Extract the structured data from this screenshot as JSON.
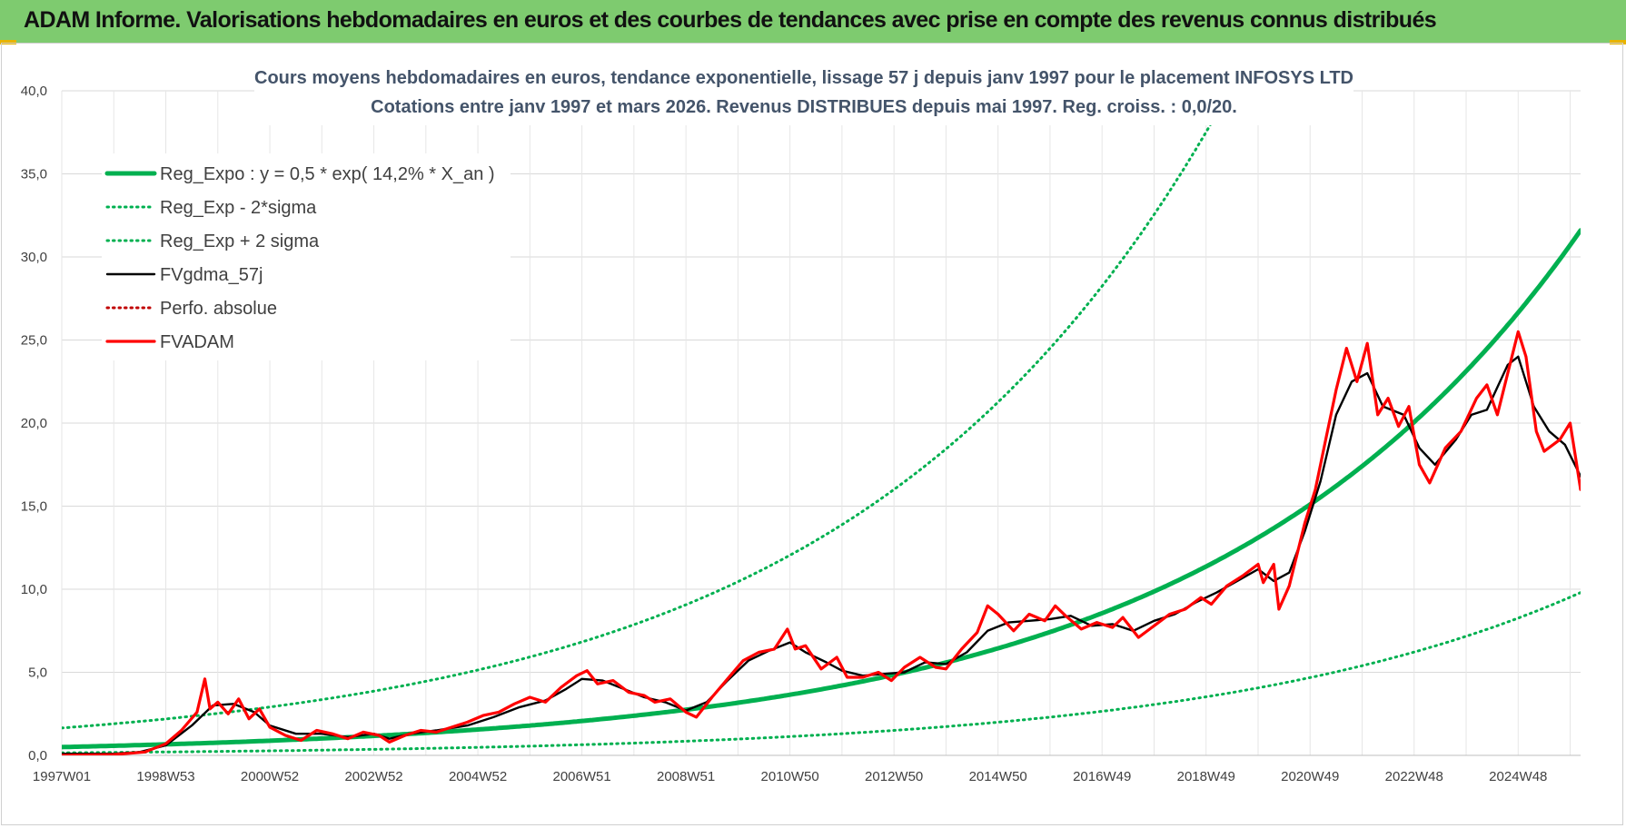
{
  "banner": {
    "title": "ADAM Informe. Valorisations hebdomadaires en euros et des courbes de tendances avec prise en compte des revenus connus distribués",
    "background": "#7ecb6f"
  },
  "chart_data": {
    "type": "line",
    "title_line1": "Cours moyens hebdomadaires en euros, tendance exponentielle, lissage 57 j depuis janv 1997  pour le placement INFOSYS LTD",
    "title_line2": "Cotations entre janv 1997 et mars 2026. Revenus DISTRIBUES depuis mai 1997. Reg. croiss. : 0,0/20.",
    "xlabel": "",
    "ylabel": "",
    "xlim": [
      1997.0,
      2026.2
    ],
    "ylim": [
      0,
      40
    ],
    "grid": true,
    "y_ticks": [
      {
        "v": 0,
        "label": "0,0"
      },
      {
        "v": 5,
        "label": "5,0"
      },
      {
        "v": 10,
        "label": "10,0"
      },
      {
        "v": 15,
        "label": "15,0"
      },
      {
        "v": 20,
        "label": "20,0"
      },
      {
        "v": 25,
        "label": "25,0"
      },
      {
        "v": 30,
        "label": "30,0"
      },
      {
        "v": 35,
        "label": "35,0"
      },
      {
        "v": 40,
        "label": "40,0"
      }
    ],
    "x_ticks": [
      {
        "t": 1997.0,
        "label": "1997W01"
      },
      {
        "t": 1999.0,
        "label": "1998W53"
      },
      {
        "t": 2001.0,
        "label": "2000W52"
      },
      {
        "t": 2003.0,
        "label": "2002W52"
      },
      {
        "t": 2005.0,
        "label": "2004W52"
      },
      {
        "t": 2007.0,
        "label": "2006W51"
      },
      {
        "t": 2009.0,
        "label": "2008W51"
      },
      {
        "t": 2011.0,
        "label": "2010W50"
      },
      {
        "t": 2013.0,
        "label": "2012W50"
      },
      {
        "t": 2015.0,
        "label": "2014W50"
      },
      {
        "t": 2017.0,
        "label": "2016W49"
      },
      {
        "t": 2019.0,
        "label": "2018W49"
      },
      {
        "t": 2021.0,
        "label": "2020W49"
      },
      {
        "t": 2023.0,
        "label": "2022W48"
      },
      {
        "t": 2025.0,
        "label": "2024W48"
      }
    ],
    "legend_position": "top-left",
    "series": [
      {
        "name": "Reg_Expo : y = 0,5 * exp( 14,2% *  X_an )",
        "color": "#00b050",
        "style": "solid-thick",
        "model": {
          "type": "exp",
          "a": 0.5,
          "rate": 0.142,
          "start": 1997.0
        }
      },
      {
        "name": "Reg_Exp - 2*sigma",
        "color": "#00b050",
        "style": "dotted",
        "model": {
          "type": "exp",
          "a": 0.5,
          "rate": 0.142,
          "start": 1997.0,
          "factor": 0.31
        }
      },
      {
        "name": "Reg_Exp + 2 sigma",
        "color": "#00b050",
        "style": "dotted",
        "model": {
          "type": "exp",
          "a": 0.5,
          "rate": 0.142,
          "start": 1997.0,
          "factor": 3.3
        }
      },
      {
        "name": "FVgdma_57j",
        "color": "#000000",
        "style": "solid",
        "points": [
          [
            1997.0,
            0.1
          ],
          [
            1998.0,
            0.1
          ],
          [
            1998.5,
            0.2
          ],
          [
            1999.0,
            0.6
          ],
          [
            1999.5,
            1.8
          ],
          [
            1999.9,
            3.0
          ],
          [
            2000.3,
            3.1
          ],
          [
            2000.7,
            2.6
          ],
          [
            2001.0,
            1.8
          ],
          [
            2001.5,
            1.3
          ],
          [
            2002.0,
            1.3
          ],
          [
            2002.5,
            1.1
          ],
          [
            2003.0,
            1.3
          ],
          [
            2003.3,
            1.0
          ],
          [
            2003.7,
            1.3
          ],
          [
            2004.2,
            1.5
          ],
          [
            2004.8,
            1.8
          ],
          [
            2005.3,
            2.3
          ],
          [
            2005.8,
            2.9
          ],
          [
            2006.3,
            3.3
          ],
          [
            2006.7,
            4.0
          ],
          [
            2007.0,
            4.6
          ],
          [
            2007.4,
            4.5
          ],
          [
            2007.8,
            4.0
          ],
          [
            2008.2,
            3.5
          ],
          [
            2008.6,
            3.2
          ],
          [
            2009.0,
            2.7
          ],
          [
            2009.4,
            3.2
          ],
          [
            2009.8,
            4.5
          ],
          [
            2010.2,
            5.7
          ],
          [
            2010.6,
            6.3
          ],
          [
            2011.0,
            6.8
          ],
          [
            2011.3,
            6.2
          ],
          [
            2011.7,
            5.6
          ],
          [
            2012.0,
            5.1
          ],
          [
            2012.4,
            4.8
          ],
          [
            2012.8,
            4.9
          ],
          [
            2013.2,
            5.0
          ],
          [
            2013.6,
            5.6
          ],
          [
            2014.0,
            5.5
          ],
          [
            2014.4,
            6.2
          ],
          [
            2014.8,
            7.5
          ],
          [
            2015.2,
            8.0
          ],
          [
            2015.6,
            8.1
          ],
          [
            2016.0,
            8.2
          ],
          [
            2016.4,
            8.4
          ],
          [
            2016.8,
            7.8
          ],
          [
            2017.2,
            7.9
          ],
          [
            2017.6,
            7.5
          ],
          [
            2018.0,
            8.1
          ],
          [
            2018.4,
            8.5
          ],
          [
            2018.8,
            9.2
          ],
          [
            2019.2,
            9.8
          ],
          [
            2019.6,
            10.5
          ],
          [
            2020.0,
            11.2
          ],
          [
            2020.3,
            10.5
          ],
          [
            2020.6,
            11.0
          ],
          [
            2020.9,
            13.5
          ],
          [
            2021.2,
            16.5
          ],
          [
            2021.5,
            20.5
          ],
          [
            2021.8,
            22.5
          ],
          [
            2022.1,
            23.0
          ],
          [
            2022.4,
            21.0
          ],
          [
            2022.8,
            20.5
          ],
          [
            2023.1,
            18.5
          ],
          [
            2023.4,
            17.5
          ],
          [
            2023.8,
            19.0
          ],
          [
            2024.1,
            20.5
          ],
          [
            2024.4,
            20.8
          ],
          [
            2024.8,
            23.5
          ],
          [
            2025.0,
            24.0
          ],
          [
            2025.3,
            21.0
          ],
          [
            2025.6,
            19.5
          ],
          [
            2025.9,
            18.7
          ],
          [
            2026.2,
            16.8
          ]
        ]
      },
      {
        "name": "Perfo. absolue",
        "color": "#c00000",
        "style": "dotted",
        "points": []
      },
      {
        "name": "FVADAM",
        "color": "#ff0000",
        "style": "solid-thick",
        "points": [
          [
            1997.0,
            0.0
          ],
          [
            1998.0,
            0.05
          ],
          [
            1998.6,
            0.2
          ],
          [
            1999.0,
            0.7
          ],
          [
            1999.3,
            1.5
          ],
          [
            1999.6,
            2.6
          ],
          [
            1999.75,
            4.6
          ],
          [
            1999.85,
            2.8
          ],
          [
            2000.0,
            3.2
          ],
          [
            2000.2,
            2.5
          ],
          [
            2000.4,
            3.4
          ],
          [
            2000.6,
            2.2
          ],
          [
            2000.8,
            2.8
          ],
          [
            2001.0,
            1.7
          ],
          [
            2001.3,
            1.2
          ],
          [
            2001.6,
            0.9
          ],
          [
            2001.9,
            1.5
          ],
          [
            2002.2,
            1.3
          ],
          [
            2002.5,
            1.0
          ],
          [
            2002.8,
            1.4
          ],
          [
            2003.1,
            1.2
          ],
          [
            2003.3,
            0.8
          ],
          [
            2003.6,
            1.2
          ],
          [
            2003.9,
            1.5
          ],
          [
            2004.2,
            1.4
          ],
          [
            2004.5,
            1.7
          ],
          [
            2004.8,
            2.0
          ],
          [
            2005.1,
            2.4
          ],
          [
            2005.4,
            2.6
          ],
          [
            2005.7,
            3.1
          ],
          [
            2006.0,
            3.5
          ],
          [
            2006.3,
            3.2
          ],
          [
            2006.6,
            4.1
          ],
          [
            2006.9,
            4.8
          ],
          [
            2007.1,
            5.1
          ],
          [
            2007.3,
            4.3
          ],
          [
            2007.6,
            4.5
          ],
          [
            2007.9,
            3.8
          ],
          [
            2008.2,
            3.6
          ],
          [
            2008.4,
            3.2
          ],
          [
            2008.7,
            3.4
          ],
          [
            2009.0,
            2.6
          ],
          [
            2009.2,
            2.3
          ],
          [
            2009.5,
            3.5
          ],
          [
            2009.8,
            4.6
          ],
          [
            2010.1,
            5.7
          ],
          [
            2010.4,
            6.2
          ],
          [
            2010.7,
            6.4
          ],
          [
            2010.95,
            7.6
          ],
          [
            2011.1,
            6.4
          ],
          [
            2011.3,
            6.6
          ],
          [
            2011.6,
            5.2
          ],
          [
            2011.9,
            5.9
          ],
          [
            2012.1,
            4.7
          ],
          [
            2012.4,
            4.7
          ],
          [
            2012.7,
            5.0
          ],
          [
            2012.95,
            4.5
          ],
          [
            2013.2,
            5.3
          ],
          [
            2013.5,
            5.9
          ],
          [
            2013.8,
            5.3
          ],
          [
            2014.0,
            5.2
          ],
          [
            2014.3,
            6.4
          ],
          [
            2014.6,
            7.4
          ],
          [
            2014.8,
            9.0
          ],
          [
            2015.0,
            8.5
          ],
          [
            2015.3,
            7.5
          ],
          [
            2015.6,
            8.5
          ],
          [
            2015.9,
            8.1
          ],
          [
            2016.1,
            9.0
          ],
          [
            2016.3,
            8.4
          ],
          [
            2016.6,
            7.6
          ],
          [
            2016.9,
            8.0
          ],
          [
            2017.2,
            7.7
          ],
          [
            2017.4,
            8.3
          ],
          [
            2017.7,
            7.1
          ],
          [
            2018.0,
            7.8
          ],
          [
            2018.3,
            8.5
          ],
          [
            2018.6,
            8.8
          ],
          [
            2018.9,
            9.5
          ],
          [
            2019.1,
            9.1
          ],
          [
            2019.4,
            10.2
          ],
          [
            2019.7,
            10.8
          ],
          [
            2020.0,
            11.5
          ],
          [
            2020.1,
            10.4
          ],
          [
            2020.3,
            11.5
          ],
          [
            2020.4,
            8.8
          ],
          [
            2020.6,
            10.2
          ],
          [
            2020.9,
            14.0
          ],
          [
            2021.1,
            16.0
          ],
          [
            2021.3,
            19.0
          ],
          [
            2021.5,
            22.0
          ],
          [
            2021.7,
            24.5
          ],
          [
            2021.9,
            22.5
          ],
          [
            2022.1,
            24.8
          ],
          [
            2022.3,
            20.5
          ],
          [
            2022.5,
            21.5
          ],
          [
            2022.7,
            19.8
          ],
          [
            2022.9,
            21.0
          ],
          [
            2023.1,
            17.5
          ],
          [
            2023.3,
            16.4
          ],
          [
            2023.6,
            18.5
          ],
          [
            2023.9,
            19.5
          ],
          [
            2024.2,
            21.5
          ],
          [
            2024.4,
            22.3
          ],
          [
            2024.6,
            20.5
          ],
          [
            2024.8,
            23.0
          ],
          [
            2025.0,
            25.5
          ],
          [
            2025.15,
            24.0
          ],
          [
            2025.35,
            19.5
          ],
          [
            2025.5,
            18.3
          ],
          [
            2025.8,
            19.0
          ],
          [
            2026.0,
            20.0
          ],
          [
            2026.1,
            18.0
          ],
          [
            2026.2,
            16.0
          ]
        ]
      }
    ]
  }
}
